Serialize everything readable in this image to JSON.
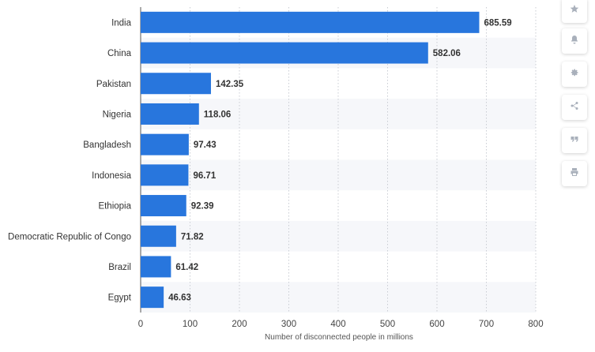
{
  "chart_data": {
    "type": "bar",
    "orientation": "horizontal",
    "categories": [
      "India",
      "China",
      "Pakistan",
      "Nigeria",
      "Bangladesh",
      "Indonesia",
      "Ethiopia",
      "Democratic Republic of Congo",
      "Brazil",
      "Egypt"
    ],
    "values": [
      685.59,
      582.06,
      142.35,
      118.06,
      97.43,
      96.71,
      92.39,
      71.82,
      61.42,
      46.63
    ],
    "value_labels": [
      "685.59",
      "582.06",
      "142.35",
      "118.06",
      "97.43",
      "96.71",
      "92.39",
      "71.82",
      "61.42",
      "46.63"
    ],
    "xlabel": "Number of disconnected people in millions",
    "xlim": [
      0,
      800
    ],
    "ticks": [
      "0",
      "100",
      "200",
      "300",
      "400",
      "500",
      "600",
      "700",
      "800"
    ],
    "bar_color": "#2876dd",
    "grid": true
  },
  "toolbar": {
    "buttons": [
      {
        "icon": "star-icon",
        "name": "favorite-button"
      },
      {
        "icon": "bell-icon",
        "name": "notification-button"
      },
      {
        "icon": "gear-icon",
        "name": "settings-button"
      },
      {
        "icon": "share-icon",
        "name": "share-button"
      },
      {
        "icon": "quote-icon",
        "name": "cite-button"
      },
      {
        "icon": "print-icon",
        "name": "print-button"
      }
    ]
  }
}
